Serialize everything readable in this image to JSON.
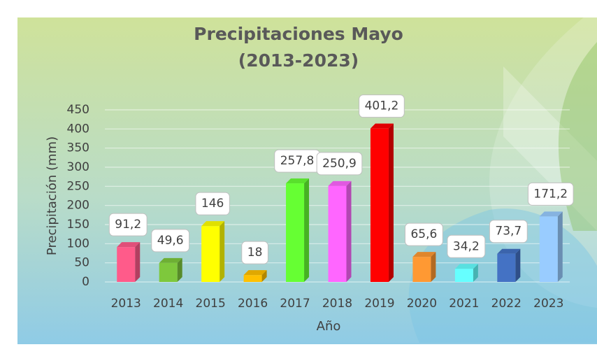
{
  "chart_data": {
    "type": "bar",
    "title": "Precipitaciones Mayo",
    "subtitle": "(2013-2023)",
    "x_label": "Año",
    "y_label": "Precipitación (mm)",
    "categories": [
      "2013",
      "2014",
      "2015",
      "2016",
      "2017",
      "2018",
      "2019",
      "2020",
      "2021",
      "2022",
      "2023"
    ],
    "values": [
      91.2,
      49.6,
      146,
      18,
      257.8,
      250.9,
      401.2,
      65.6,
      34.2,
      73.7,
      171.2
    ],
    "value_labels": [
      "91,2",
      "49,6",
      "146",
      "18",
      "257,8",
      "250,9",
      "401,2",
      "65,6",
      "34,2",
      "73,7",
      "171,2"
    ],
    "colors": [
      "#ff5b8a",
      "#7ec83c",
      "#ffff00",
      "#ffc000",
      "#66ff33",
      "#ff66ff",
      "#ff0000",
      "#ff9933",
      "#66ffff",
      "#4472c4",
      "#99ccff"
    ],
    "ylim": [
      0,
      450
    ],
    "yticks": [
      0,
      50,
      100,
      150,
      200,
      250,
      300,
      350,
      400,
      450
    ],
    "grid": true
  }
}
